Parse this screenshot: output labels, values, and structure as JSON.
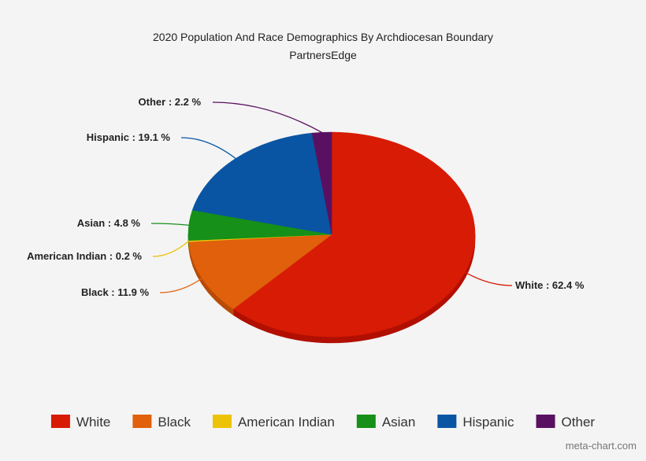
{
  "chart_data": {
    "type": "pie",
    "title": "2020 Population And Race Demographics By Archdiocesan Boundary",
    "subtitle": "PartnersEdge",
    "unit": "%",
    "slices": [
      {
        "label": "White",
        "value": 62.4,
        "color": "#d81b04",
        "shade": "#b10f02"
      },
      {
        "label": "Black",
        "value": 11.9,
        "color": "#e0600c",
        "shade": "#b84b06"
      },
      {
        "label": "American Indian",
        "value": 0.2,
        "color": "#edc30a",
        "shade": "#c29f06"
      },
      {
        "label": "Asian",
        "value": 4.8,
        "color": "#169018",
        "shade": "#0f6d11"
      },
      {
        "label": "Hispanic",
        "value": 19.1,
        "color": "#0a55a3",
        "shade": "#073f7b"
      },
      {
        "label": "Other",
        "value": 2.2,
        "color": "#5a1060",
        "shade": "#420b47"
      }
    ],
    "legend_placement": "bottom"
  },
  "credit": "meta-chart.com"
}
